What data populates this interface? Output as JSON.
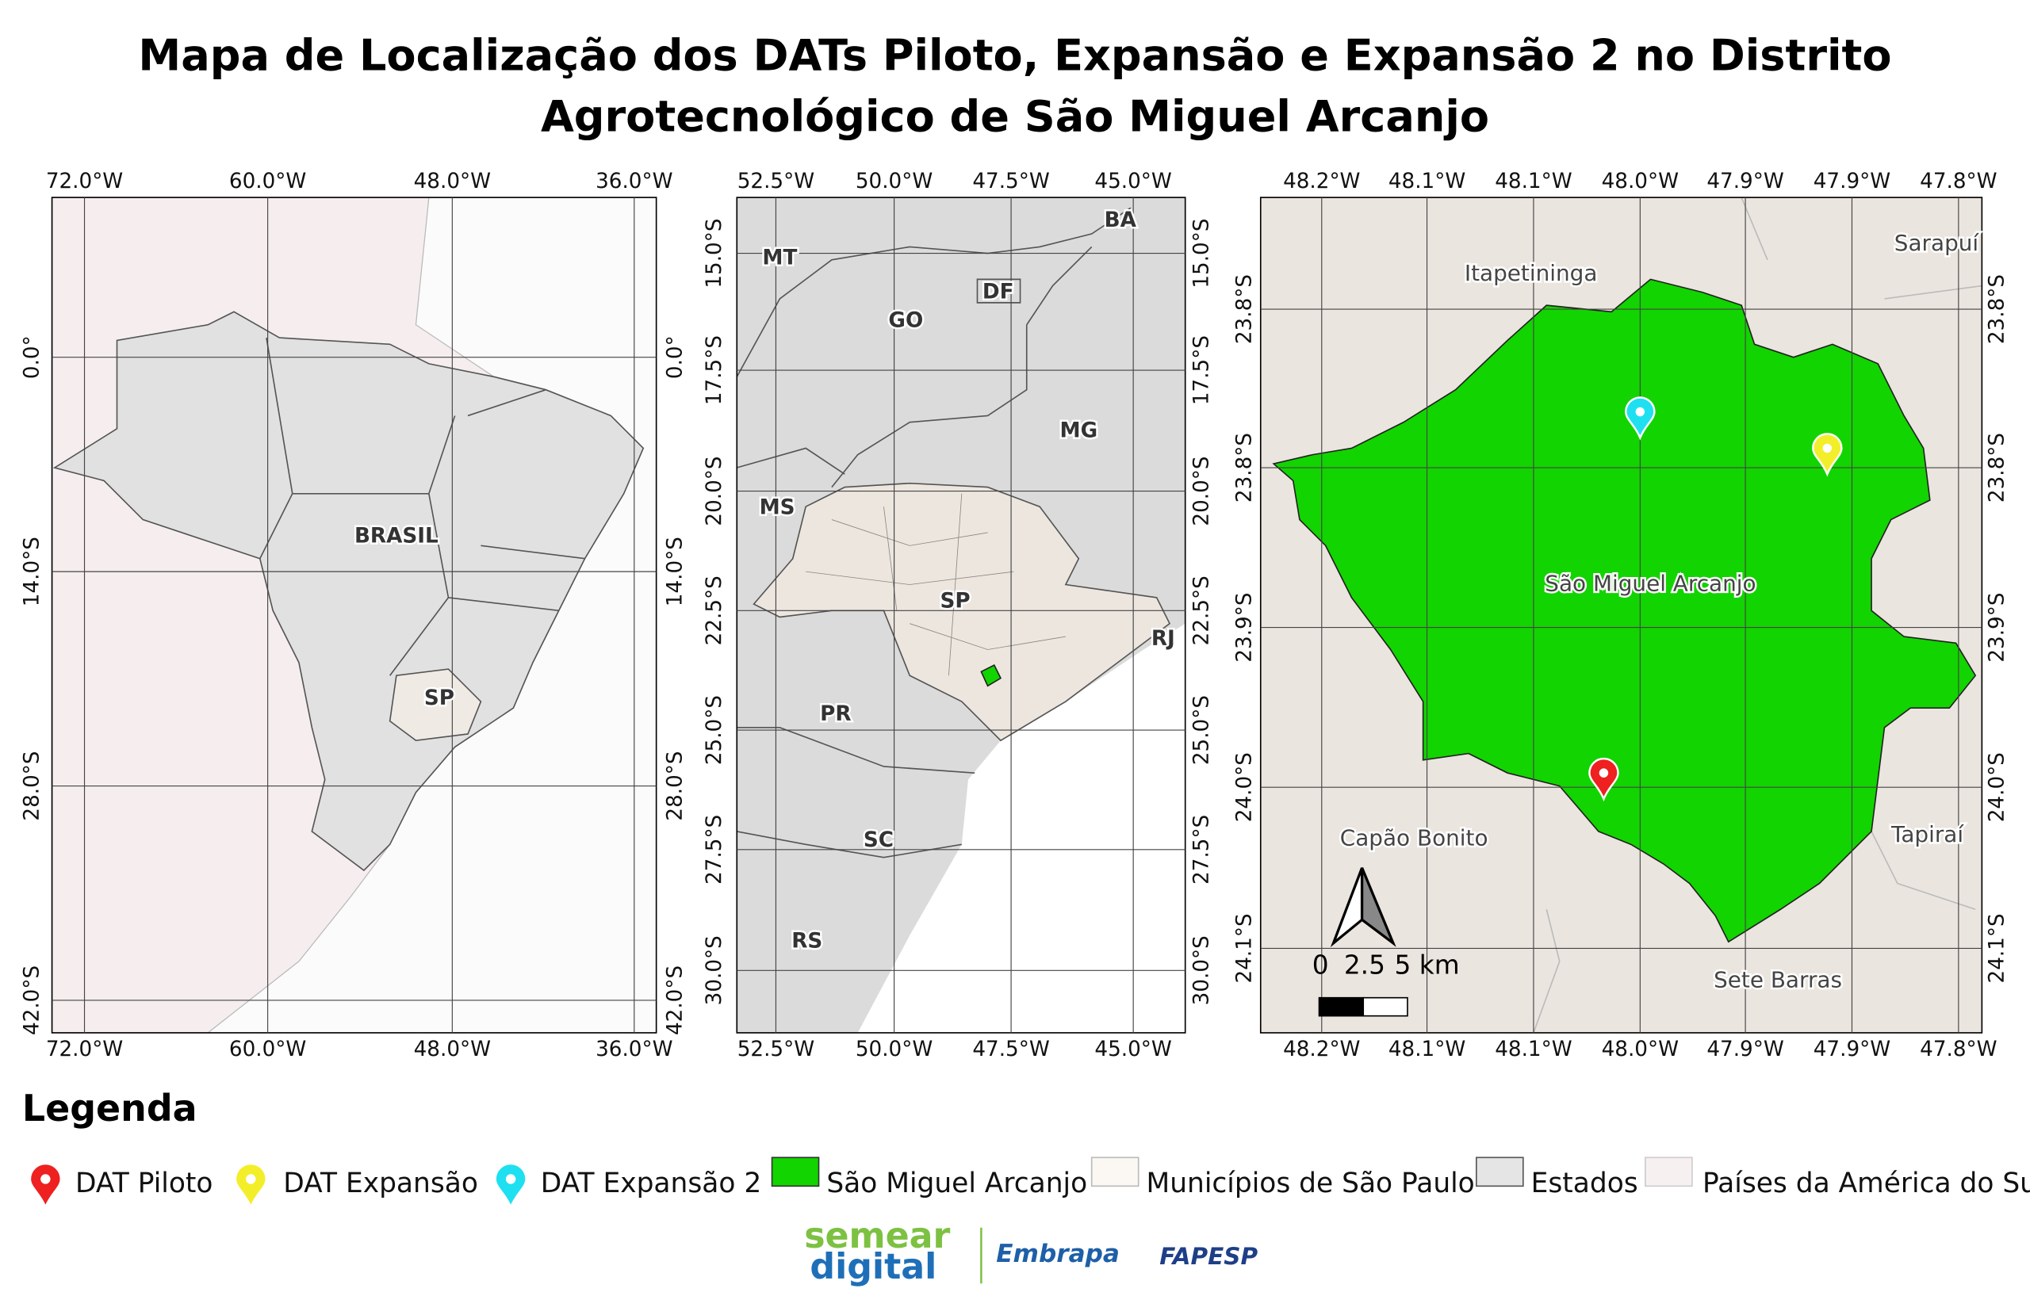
{
  "title": {
    "lines": [
      "Mapa de Localização dos DATs Piloto, Expansão e Expansão 2 no Distrito",
      "Agrotecnológico de São Miguel Arcanjo"
    ]
  },
  "maps": [
    {
      "x_labels": [
        "72.0°W",
        "60.0°W",
        "48.0°W",
        "36.0°W"
      ],
      "y_labels": [
        "0.0°",
        "14.0°S",
        "28.0°S",
        "42.0°S"
      ],
      "places": [
        "BRASIL",
        "SP"
      ]
    },
    {
      "x_labels": [
        "52.5°W",
        "50.0°W",
        "47.5°W",
        "45.0°W"
      ],
      "y_labels": [
        "15.0°S",
        "17.5°S",
        "20.0°S",
        "22.5°S",
        "25.0°S",
        "27.5°S",
        "30.0°S"
      ],
      "places": [
        "MT",
        "BA",
        "DF",
        "GO",
        "MG",
        "MS",
        "SP",
        "RJ",
        "PR",
        "SC",
        "RS"
      ]
    },
    {
      "x_labels": [
        "48.2°W",
        "48.1°W",
        "48.1°W",
        "48.0°W",
        "47.9°W",
        "47.9°W",
        "47.8°W"
      ],
      "y_labels": [
        "23.8°S",
        "23.8°S",
        "23.9°S",
        "24.0°S",
        "24.1°S"
      ],
      "places": [
        "Itapetininga",
        "Sarapuí",
        "São Miguel Arcanjo",
        "Capão Bonito",
        "Tapiraí",
        "Sete Barras"
      ],
      "scale_labels": [
        "0",
        "2.5",
        "5 km"
      ]
    }
  ],
  "legend": {
    "title": "Legenda",
    "items": [
      "DAT Piloto",
      "DAT Expansão",
      "DAT Expansão 2",
      "São Miguel Arcanjo",
      "Municípios de São Paulo",
      "Estados",
      "Países da América do Sul"
    ]
  },
  "logos": [
    "semear",
    "digital",
    "Embrapa",
    "FAPESP"
  ]
}
